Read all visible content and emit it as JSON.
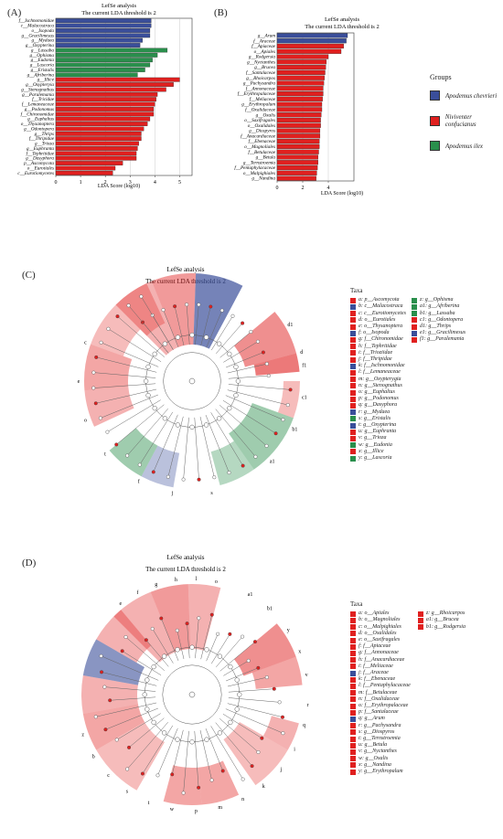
{
  "colors": {
    "blue": "#3a4e9a",
    "red": "#e0201f",
    "green": "#2a8f4c"
  },
  "panelA": {
    "label": "(A)",
    "title1": "LefSe analysis",
    "title2": "The current LDA threshold is 2",
    "xlabel": "LDA Score (log10)",
    "ticks": [
      "0",
      "1",
      "2",
      "3",
      "4",
      "5"
    ],
    "chart_data": {
      "type": "bar",
      "xlim": [
        0,
        5.5
      ],
      "categories": [
        "f__Ischnomonidae",
        "c__Malacostraca",
        "o__Isopoda",
        "g__Gracilimesus",
        "g__Mydaea",
        "g__Oxypterina",
        "g__Lassaba",
        "g__Ophisma",
        "g__Eudonia",
        "g__Lascoria",
        "g__Eristalis",
        "g__Afriberina",
        "g__Illice",
        "g__Oxypteryia",
        "g__Stenognathus",
        "g__Paralemania",
        "f__Tricidae",
        "f__Lemaneaceae",
        "g__Podonomus",
        "f__Chironomidae",
        "g__Euphaltus",
        "o__Thysanoptera",
        "g__Odontopera",
        "g__Thrips",
        "f__Thripidae",
        "g__Trioza",
        "g__Euphranta",
        "f__Tephritidae",
        "g__Dasyphora",
        "p__Ascomycota",
        "o__Eurotiales",
        "c__Eurotiomycetes"
      ],
      "values": [
        3.85,
        3.85,
        3.8,
        3.8,
        3.5,
        3.4,
        4.5,
        4.1,
        3.9,
        3.8,
        3.6,
        3.3,
        5.0,
        4.75,
        4.45,
        4.1,
        4.05,
        4.0,
        3.95,
        3.95,
        3.8,
        3.7,
        3.55,
        3.45,
        3.45,
        3.35,
        3.3,
        3.25,
        3.25,
        2.7,
        2.4,
        2.3
      ],
      "groups": [
        "b",
        "b",
        "b",
        "b",
        "b",
        "b",
        "g",
        "g",
        "g",
        "g",
        "g",
        "g",
        "r",
        "r",
        "r",
        "r",
        "r",
        "r",
        "r",
        "r",
        "r",
        "r",
        "r",
        "r",
        "r",
        "r",
        "r",
        "r",
        "r",
        "r",
        "r",
        "r"
      ]
    }
  },
  "panelB": {
    "label": "(B)",
    "title1": "LefSe analysis",
    "title2": "The current LDA threshold is 2",
    "xlabel": "LDA Score (log10)",
    "ticks": [
      "0",
      "2",
      "4"
    ],
    "chart_data": {
      "type": "bar",
      "xlim": [
        0,
        6
      ],
      "categories": [
        "g__Arum",
        "f__Araceae",
        "f__Apiaceae",
        "o__Apiales",
        "g__Rodgersia",
        "g__Nyctanthes",
        "g__Brucea",
        "f__Santalaceae",
        "g__Rhoicarpos",
        "g__Pachysandra",
        "f__Annonaceae",
        "f__Erythropalaceae",
        "f__Meliaceae",
        "g__Erythropalum",
        "f__Oxalidaceae",
        "g__Oxalis",
        "o__Saxifragales",
        "o__Oxalidales",
        "g__Diospyros",
        "f__Anacardiaceae",
        "f__Ebenaceae",
        "o__Magnoliales",
        "f__Betulaceae",
        "g__Betula",
        "g__Ternstroemia",
        "f__Pentaphylacaceae",
        "o__Malpighiales",
        "g__Nandina"
      ],
      "values": [
        5.5,
        5.4,
        5.2,
        5.0,
        4.0,
        3.85,
        3.8,
        3.75,
        3.7,
        3.65,
        3.6,
        3.6,
        3.55,
        3.5,
        3.5,
        3.45,
        3.4,
        3.4,
        3.35,
        3.35,
        3.3,
        3.3,
        3.25,
        3.2,
        3.2,
        3.15,
        3.1,
        3.05
      ],
      "groups": [
        "b",
        "b",
        "r",
        "r",
        "r",
        "r",
        "r",
        "r",
        "r",
        "r",
        "r",
        "r",
        "r",
        "r",
        "r",
        "r",
        "r",
        "r",
        "r",
        "r",
        "r",
        "r",
        "r",
        "r",
        "r",
        "r",
        "r",
        "r"
      ]
    }
  },
  "groupsLegend": {
    "title": "Groups",
    "items": [
      {
        "label": "Apodemus chevrieri",
        "color": "#3a4e9a"
      },
      {
        "label": "Niviventer confucianus",
        "color": "#e0201f"
      },
      {
        "label": "Apodemus ilex",
        "color": "#2a8f4c"
      }
    ]
  },
  "panelC": {
    "label": "(C)",
    "title1": "LefSe analysis",
    "title2": "The current LDA threshold is 2",
    "legendTitle": "Taxa",
    "legendCol1": [
      {
        "t": "a: p__Ascomycota",
        "c": "r"
      },
      {
        "t": "b: c__Malacostraca",
        "c": "b"
      },
      {
        "t": "c: c__Eurotiomycetes",
        "c": "r"
      },
      {
        "t": "d: o__Eurotiales",
        "c": "r"
      },
      {
        "t": "e: o__Thysanoptera",
        "c": "r"
      },
      {
        "t": "f: o__Isopoda",
        "c": "b"
      },
      {
        "t": "g: f__Chironomidae",
        "c": "r"
      },
      {
        "t": "h: f__Tephritidae",
        "c": "r"
      },
      {
        "t": "i: f__Trioziidae",
        "c": "r"
      },
      {
        "t": "j: f__Thripidae",
        "c": "r"
      },
      {
        "t": "k: f__Ischnomonidae",
        "c": "b"
      },
      {
        "t": "l: f__Lemaneaceae",
        "c": "r"
      },
      {
        "t": "m: g__Oxypterygia",
        "c": "r"
      },
      {
        "t": "n: g__Stenognathus",
        "c": "r"
      },
      {
        "t": "o: g__Euphaltus",
        "c": "r"
      },
      {
        "t": "p: g__Podonomus",
        "c": "r"
      },
      {
        "t": "q: g__Dasyphora",
        "c": "r"
      },
      {
        "t": "r: g__Mydaea",
        "c": "b"
      },
      {
        "t": "s: g__Eristalis",
        "c": "g"
      },
      {
        "t": "t: g__Oxypterina",
        "c": "b"
      },
      {
        "t": "u: g__Euphranta",
        "c": "r"
      },
      {
        "t": "v: g__Trioza",
        "c": "r"
      },
      {
        "t": "w: g__Eudonia",
        "c": "g"
      },
      {
        "t": "x: g__Illice",
        "c": "r"
      },
      {
        "t": "y: g__Lascoria",
        "c": "g"
      }
    ],
    "legendCol2": [
      {
        "t": "z: g__Ophisma",
        "c": "g"
      },
      {
        "t": "a1: g__Afriberina",
        "c": "g"
      },
      {
        "t": "b1: g__Lassaba",
        "c": "g"
      },
      {
        "t": "c1: g__Odontopera",
        "c": "r"
      },
      {
        "t": "d1: g__Thrips",
        "c": "r"
      },
      {
        "t": "e1: g__Gracilimesus",
        "c": "b"
      },
      {
        "t": "f1: g__Paralemania",
        "c": "r"
      }
    ],
    "nodeLabels": [
      "c1",
      "b1",
      "a1",
      "s",
      "j",
      "f",
      "t",
      "o",
      "e",
      "c",
      "d1",
      "d",
      "f1"
    ]
  },
  "panelD": {
    "label": "(D)",
    "title1": "LefSe analysis",
    "title2": "The current LDA threshold is 2",
    "legendTitle": "Taxa",
    "legendCol1": [
      {
        "t": "a: o__Apiales",
        "c": "r"
      },
      {
        "t": "b: o__Magnoliales",
        "c": "r"
      },
      {
        "t": "c: o__Malpighiales",
        "c": "r"
      },
      {
        "t": "d: o__Oxalidales",
        "c": "r"
      },
      {
        "t": "e: o__Saxifragales",
        "c": "r"
      },
      {
        "t": "f: f__Apiaceae",
        "c": "r"
      },
      {
        "t": "g: f__Annonaceae",
        "c": "r"
      },
      {
        "t": "h: f__Anacardiaceae",
        "c": "r"
      },
      {
        "t": "i: f__Meliaceae",
        "c": "r"
      },
      {
        "t": "j: f__Araceae",
        "c": "b"
      },
      {
        "t": "k: f__Ebenaceae",
        "c": "r"
      },
      {
        "t": "l: f__Pentaphylacaceae",
        "c": "r"
      },
      {
        "t": "m: f__Betulaceae",
        "c": "r"
      },
      {
        "t": "n: f__Oxalidaceae",
        "c": "r"
      },
      {
        "t": "o: f__Erythropalaceae",
        "c": "r"
      },
      {
        "t": "p: f__Santalaceae",
        "c": "r"
      },
      {
        "t": "q: g__Arum",
        "c": "b"
      },
      {
        "t": "r: g__Pachysandra",
        "c": "r"
      },
      {
        "t": "s: g__Diospyros",
        "c": "r"
      },
      {
        "t": "t: g__Ternstroemia",
        "c": "r"
      },
      {
        "t": "u: g__Betula",
        "c": "r"
      },
      {
        "t": "v: g__Nyctanthes",
        "c": "r"
      },
      {
        "t": "w: g__Oxalis",
        "c": "r"
      },
      {
        "t": "x: g__Nandina",
        "c": "r"
      },
      {
        "t": "y: g__Erythropalum",
        "c": "r"
      }
    ],
    "legendCol2": [
      {
        "t": "z: g__Rhoicarpos",
        "c": "r"
      },
      {
        "t": "a1: g__Brucea",
        "c": "r"
      },
      {
        "t": "b1: g__Rodgersia",
        "c": "r"
      }
    ],
    "nodeLabels": [
      "e",
      "f",
      "g",
      "h",
      "l",
      "o",
      "a1",
      "b1",
      "y",
      "x",
      "v",
      "r",
      "q",
      "i",
      "j",
      "k",
      "n",
      "m",
      "p",
      "w",
      "t",
      "s",
      "c",
      "b",
      "z"
    ]
  }
}
